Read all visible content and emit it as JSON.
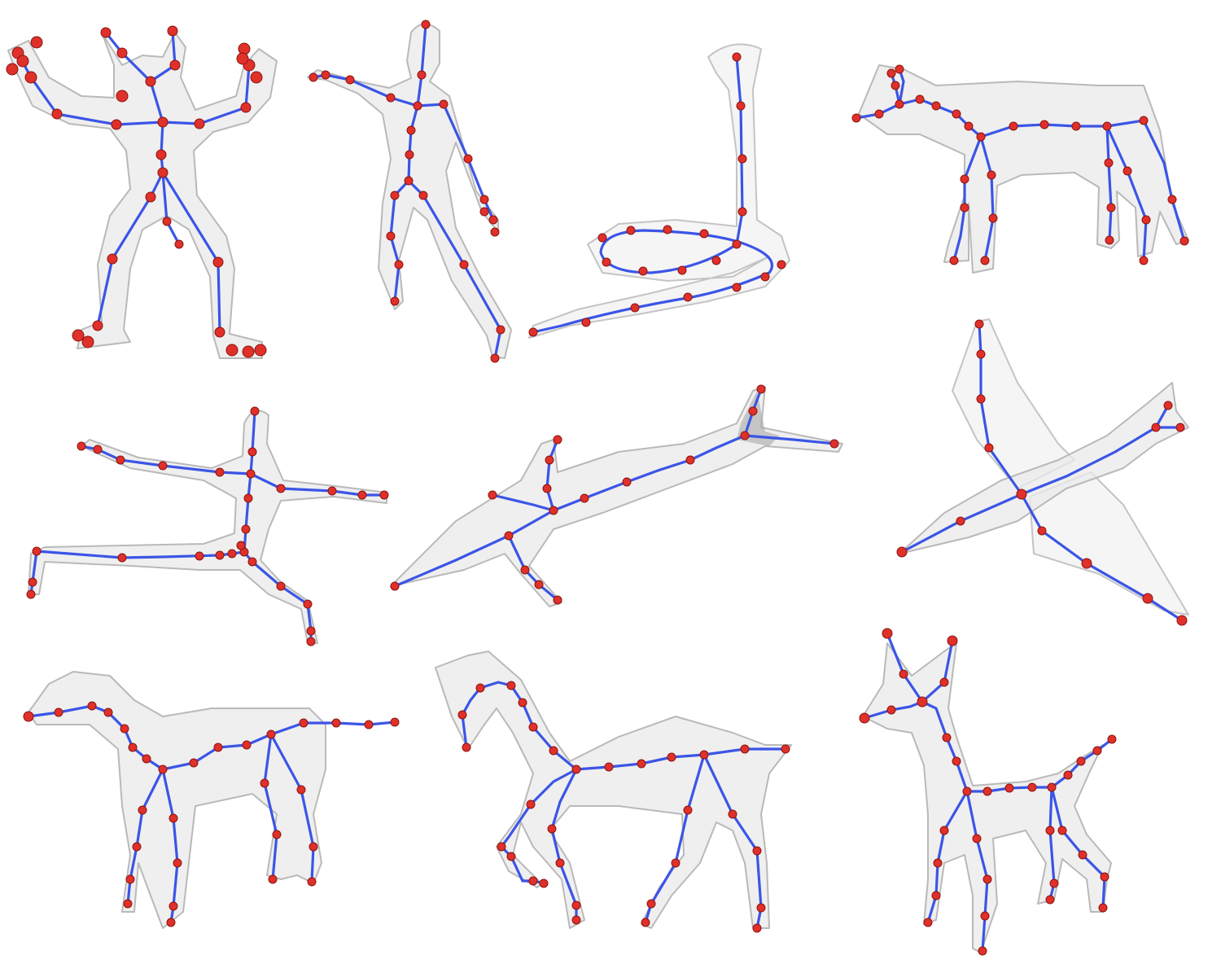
{
  "colors": {
    "background": "#ffffff",
    "mesh_fill": "#e9e9e9",
    "mesh_stroke": "#b9b9b9",
    "bone": "#3b55e6",
    "joint": "#e0302a",
    "joint_edge": "#8a1410"
  },
  "figures": [
    {
      "subject": "ogre",
      "pose": "arms-raised"
    },
    {
      "subject": "human",
      "pose": "reaching"
    },
    {
      "subject": "snake",
      "pose": "coiled"
    },
    {
      "subject": "lioness",
      "pose": "standing"
    },
    {
      "subject": "human",
      "pose": "lunge-arms-spread"
    },
    {
      "subject": "dolphin",
      "pose": "swimming"
    },
    {
      "subject": "bird",
      "pose": "wings-up"
    },
    {
      "subject": "dog",
      "pose": "standing"
    },
    {
      "subject": "horse",
      "pose": "walking"
    },
    {
      "subject": "small-dog",
      "pose": "standing"
    }
  ]
}
